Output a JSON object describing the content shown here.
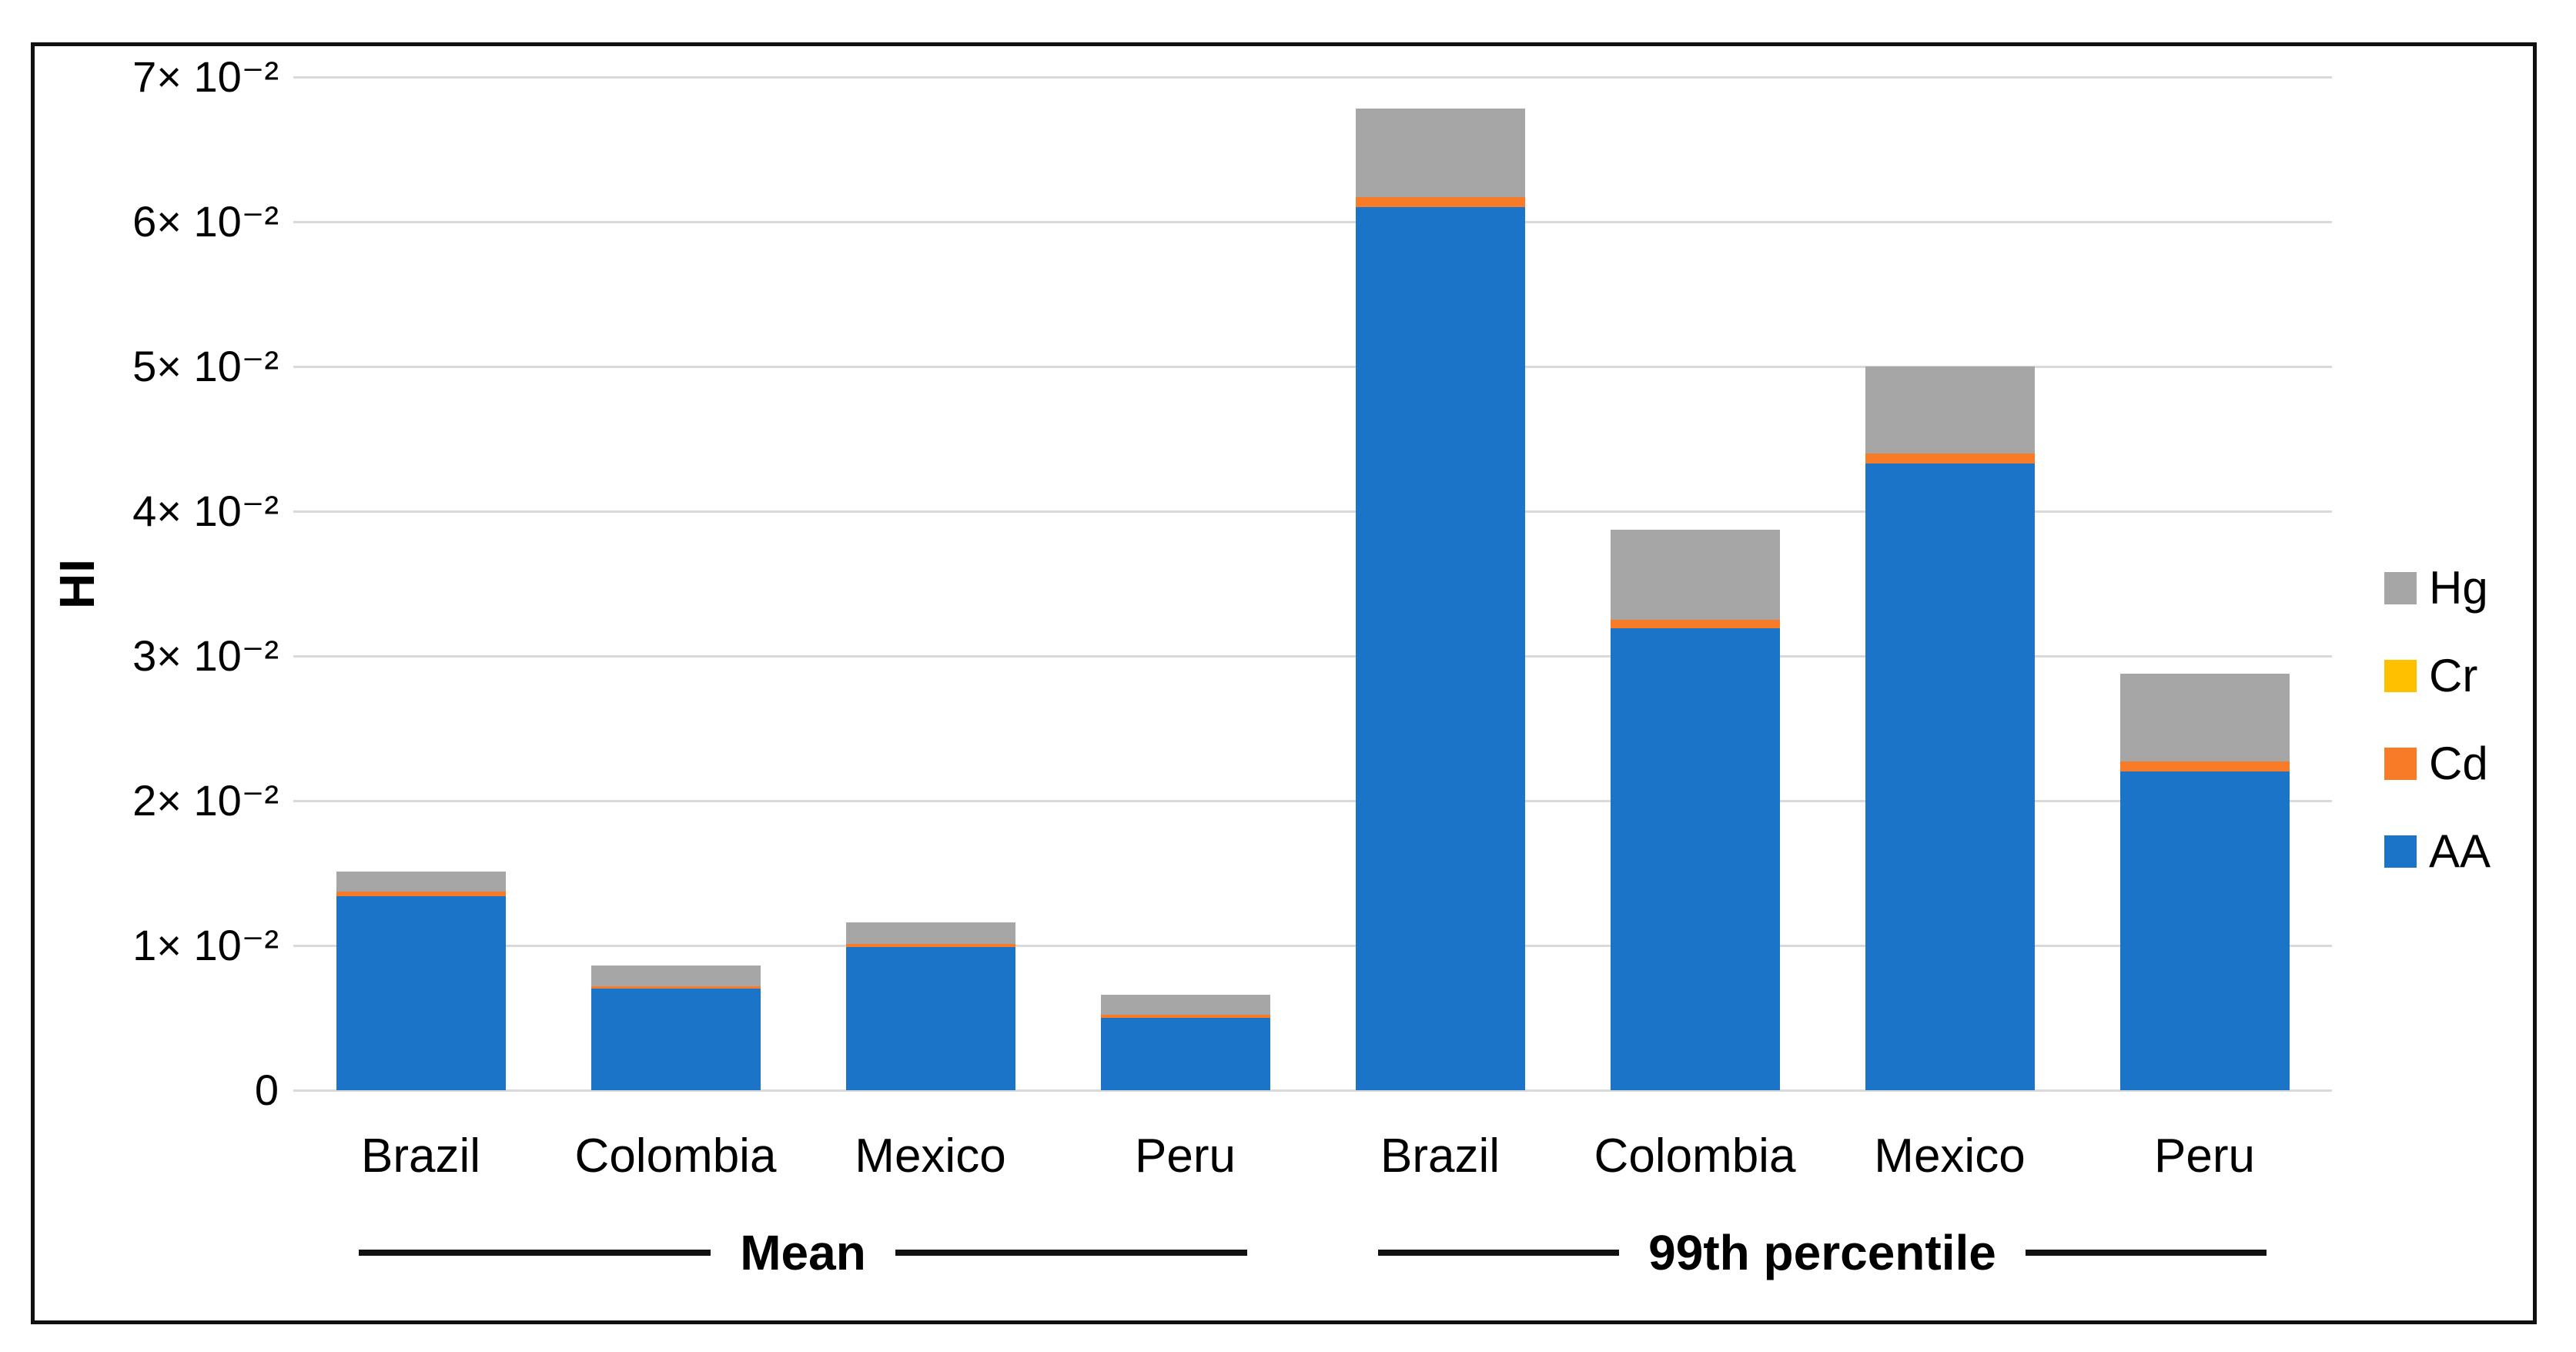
{
  "chart_data": {
    "type": "bar",
    "stacked": true,
    "title": "",
    "ylabel": "HI",
    "xlabel": "",
    "grid": "horizontal",
    "legend_position": "right",
    "legend_order_top_to_bottom": [
      "Hg",
      "Cr",
      "Cd",
      "AA"
    ],
    "y_axis": {
      "min": 0,
      "max": 0.07,
      "step": 0.01,
      "tick_labels": [
        "0",
        "1× 10⁻²",
        "2× 10⁻²",
        "3× 10⁻²",
        "4× 10⁻²",
        "5× 10⁻²",
        "6× 10⁻²",
        "7× 10⁻²"
      ]
    },
    "groups": [
      {
        "label": "Mean",
        "categories": [
          "Brazil",
          "Colombia",
          "Mexico",
          "Peru"
        ]
      },
      {
        "label": "99th percentile",
        "categories": [
          "Brazil",
          "Colombia",
          "Mexico",
          "Peru"
        ]
      }
    ],
    "categories": [
      "Brazil",
      "Colombia",
      "Mexico",
      "Peru",
      "Brazil",
      "Colombia",
      "Mexico",
      "Peru"
    ],
    "stack_order_bottom_to_top": [
      "AA",
      "Cd",
      "Cr",
      "Hg"
    ],
    "series": [
      {
        "name": "AA",
        "color": "#1c74c8",
        "values": [
          0.0134,
          0.007,
          0.0099,
          0.005,
          0.061,
          0.0319,
          0.0433,
          0.022
        ]
      },
      {
        "name": "Cd",
        "color": "#f87c28",
        "values": [
          0.0003,
          0.0002,
          0.0002,
          0.0002,
          0.0007,
          0.0006,
          0.0007,
          0.0007
        ]
      },
      {
        "name": "Cr",
        "color": "#ffc000",
        "values": [
          0,
          0,
          0,
          0,
          0,
          0,
          0,
          0
        ]
      },
      {
        "name": "Hg",
        "color": "#a6a6a6",
        "values": [
          0.0014,
          0.0014,
          0.0015,
          0.0014,
          0.0061,
          0.0062,
          0.006,
          0.0061
        ]
      }
    ],
    "colors": {
      "gridline": "#d9d9d9",
      "frame_border": "#111111",
      "text": "#000000"
    }
  }
}
